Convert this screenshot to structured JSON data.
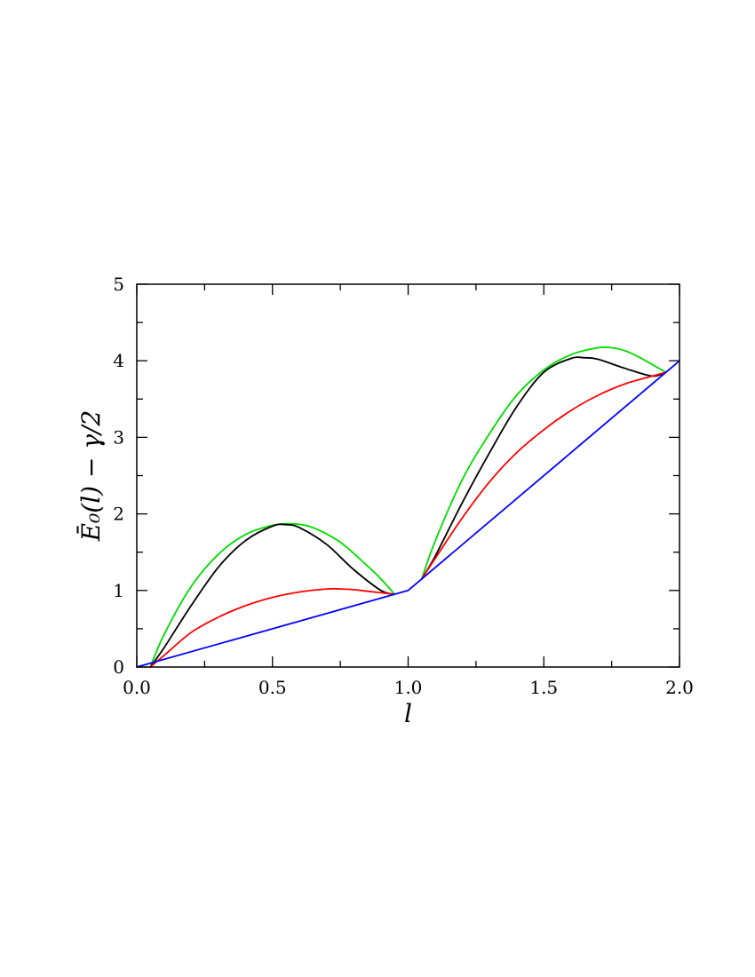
{
  "chart_data": {
    "type": "line",
    "xlabel": "l",
    "ylabel": "Ē₀(l) − γ/2",
    "xlim": [
      0.0,
      2.0
    ],
    "ylim": [
      0,
      5
    ],
    "x_ticks": [
      "0.0",
      "0.5",
      "1.0",
      "1.5",
      "2.0"
    ],
    "y_ticks": [
      "0",
      "1",
      "2",
      "3",
      "4",
      "5"
    ],
    "grid": false,
    "series": [
      {
        "color": "#00dd00",
        "segments": [
          [
            [
              0.05,
              0.0
            ],
            [
              0.1,
              0.42
            ],
            [
              0.2,
              1.05
            ],
            [
              0.3,
              1.47
            ],
            [
              0.4,
              1.73
            ],
            [
              0.5,
              1.85
            ],
            [
              0.575,
              1.87
            ],
            [
              0.65,
              1.82
            ],
            [
              0.75,
              1.63
            ],
            [
              0.85,
              1.32
            ],
            [
              0.9,
              1.15
            ],
            [
              0.95,
              0.95
            ]
          ],
          [
            [
              1.05,
              1.15
            ],
            [
              1.1,
              1.65
            ],
            [
              1.2,
              2.45
            ],
            [
              1.3,
              3.05
            ],
            [
              1.4,
              3.55
            ],
            [
              1.5,
              3.88
            ],
            [
              1.6,
              4.08
            ],
            [
              1.7,
              4.17
            ],
            [
              1.75,
              4.17
            ],
            [
              1.8,
              4.13
            ],
            [
              1.85,
              4.05
            ],
            [
              1.9,
              3.95
            ],
            [
              1.95,
              3.85
            ]
          ]
        ]
      },
      {
        "color": "#000000",
        "segments": [
          [
            [
              0.05,
              0.0
            ],
            [
              0.1,
              0.25
            ],
            [
              0.2,
              0.8
            ],
            [
              0.3,
              1.3
            ],
            [
              0.4,
              1.65
            ],
            [
              0.5,
              1.84
            ],
            [
              0.55,
              1.86
            ],
            [
              0.6,
              1.82
            ],
            [
              0.7,
              1.6
            ],
            [
              0.8,
              1.27
            ],
            [
              0.9,
              1.0
            ],
            [
              0.95,
              0.95
            ]
          ],
          [
            [
              1.05,
              1.15
            ],
            [
              1.1,
              1.45
            ],
            [
              1.2,
              2.15
            ],
            [
              1.3,
              2.8
            ],
            [
              1.4,
              3.4
            ],
            [
              1.5,
              3.85
            ],
            [
              1.6,
              4.03
            ],
            [
              1.65,
              4.04
            ],
            [
              1.7,
              4.02
            ],
            [
              1.8,
              3.9
            ],
            [
              1.9,
              3.8
            ],
            [
              1.95,
              3.85
            ]
          ]
        ]
      },
      {
        "color": "#ff0000",
        "segments": [
          [
            [
              0.05,
              0.0
            ],
            [
              0.1,
              0.15
            ],
            [
              0.2,
              0.45
            ],
            [
              0.3,
              0.65
            ],
            [
              0.4,
              0.8
            ],
            [
              0.5,
              0.91
            ],
            [
              0.6,
              0.98
            ],
            [
              0.7,
              1.02
            ],
            [
              0.75,
              1.02
            ],
            [
              0.8,
              1.01
            ],
            [
              0.85,
              0.99
            ],
            [
              0.95,
              0.95
            ]
          ],
          [
            [
              1.05,
              1.15
            ],
            [
              1.1,
              1.42
            ],
            [
              1.2,
              1.95
            ],
            [
              1.3,
              2.42
            ],
            [
              1.4,
              2.8
            ],
            [
              1.5,
              3.1
            ],
            [
              1.6,
              3.35
            ],
            [
              1.7,
              3.55
            ],
            [
              1.8,
              3.7
            ],
            [
              1.9,
              3.8
            ],
            [
              1.95,
              3.85
            ]
          ]
        ]
      },
      {
        "color": "#0000ff",
        "segments": [
          [
            [
              0.0,
              0.0
            ],
            [
              1.0,
              1.0
            ],
            [
              2.0,
              4.0
            ]
          ]
        ]
      }
    ]
  }
}
